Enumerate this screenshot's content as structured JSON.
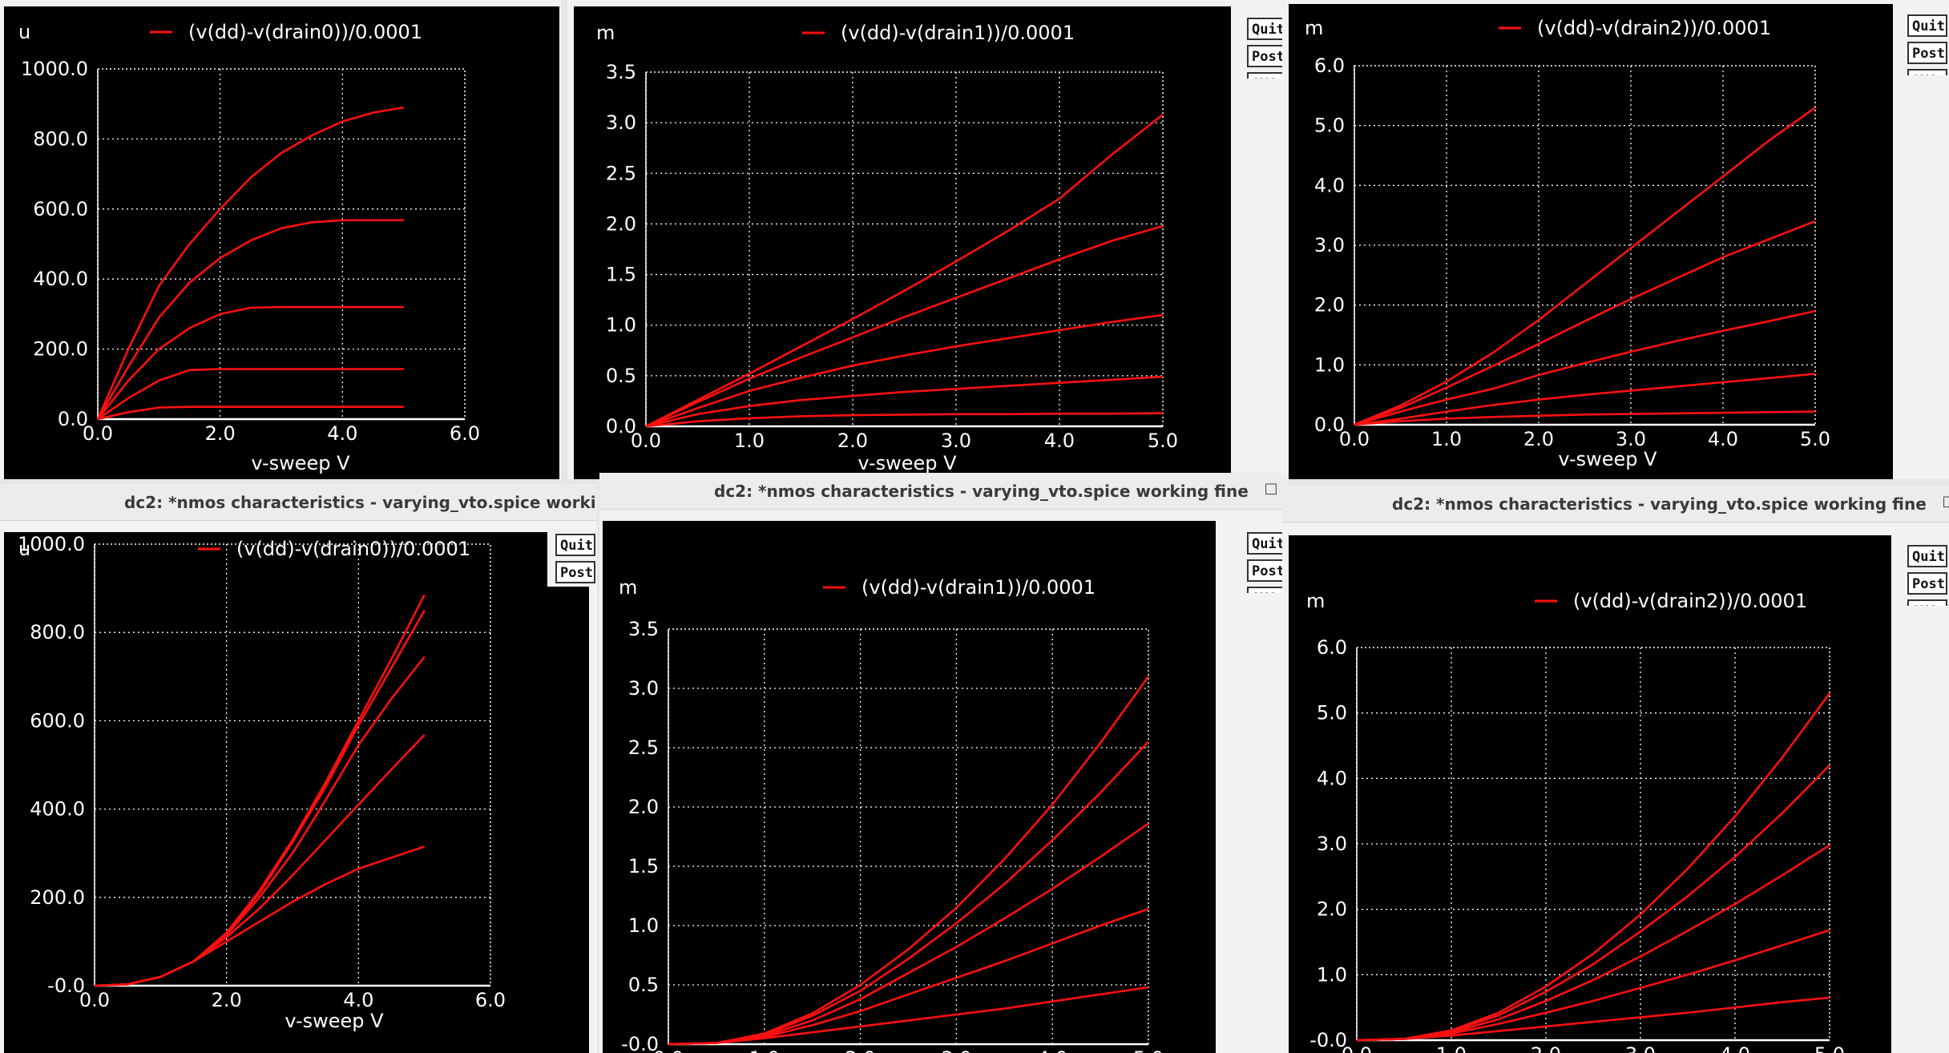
{
  "windows": [
    {
      "title": "",
      "buttons": [
        "Quit",
        "PostSc",
        "SVG"
      ],
      "chart_data": {
        "type": "line",
        "title": "",
        "legend": "(v(dd)-v(drain0))/0.0001",
        "ylabel": "u",
        "xlabel": "v-sweep  V",
        "xlim": [
          0,
          6
        ],
        "ylim": [
          0,
          1000
        ],
        "x_ticks": [
          "0.0",
          "2.0",
          "4.0",
          "6.0"
        ],
        "y_ticks": [
          "0.0",
          "200.0",
          "400.0",
          "600.0",
          "800.0",
          "1000.0"
        ],
        "grid": true,
        "x": [
          0,
          0.5,
          1,
          1.5,
          2,
          2.5,
          3,
          3.5,
          4,
          4.5,
          5
        ],
        "series": [
          {
            "values": [
              0,
              20,
              33,
              35,
              35,
              35,
              35,
              35,
              35,
              35,
              35
            ]
          },
          {
            "values": [
              0,
              60,
              110,
              140,
              143,
              143,
              143,
              143,
              143,
              143,
              143
            ]
          },
          {
            "values": [
              0,
              110,
              200,
              260,
              300,
              318,
              320,
              320,
              320,
              320,
              320
            ]
          },
          {
            "values": [
              0,
              150,
              290,
              390,
              460,
              510,
              545,
              562,
              568,
              568,
              568
            ]
          },
          {
            "values": [
              0,
              200,
              380,
              500,
              600,
              690,
              760,
              810,
              850,
              875,
              890
            ]
          }
        ]
      }
    },
    {
      "title": "",
      "buttons": [
        "Quit",
        "PostSc",
        "SVG"
      ],
      "chart_data": {
        "type": "line",
        "title": "",
        "legend": "(v(dd)-v(drain1))/0.0001",
        "ylabel": "m",
        "xlabel": "v-sweep  V",
        "xlim": [
          0,
          5
        ],
        "ylim": [
          0,
          3.5
        ],
        "x_ticks": [
          "0.0",
          "1.0",
          "2.0",
          "3.0",
          "4.0",
          "5.0"
        ],
        "y_ticks": [
          "0.0",
          "0.5",
          "1.0",
          "1.5",
          "2.0",
          "2.5",
          "3.0",
          "3.5"
        ],
        "grid": true,
        "x": [
          0,
          0.5,
          1,
          1.5,
          2,
          2.5,
          3,
          3.5,
          4,
          4.5,
          5
        ],
        "series": [
          {
            "values": [
              0,
              0.05,
              0.08,
              0.1,
              0.11,
              0.115,
              0.12,
              0.12,
              0.125,
              0.125,
              0.13
            ]
          },
          {
            "values": [
              0,
              0.12,
              0.2,
              0.26,
              0.3,
              0.34,
              0.37,
              0.4,
              0.43,
              0.46,
              0.49
            ]
          },
          {
            "values": [
              0,
              0.18,
              0.35,
              0.48,
              0.6,
              0.7,
              0.79,
              0.87,
              0.95,
              1.03,
              1.1
            ]
          },
          {
            "values": [
              0,
              0.24,
              0.47,
              0.68,
              0.88,
              1.08,
              1.27,
              1.46,
              1.65,
              1.83,
              1.98
            ]
          },
          {
            "values": [
              0,
              0.26,
              0.52,
              0.79,
              1.06,
              1.34,
              1.63,
              1.93,
              2.25,
              2.68,
              3.08
            ]
          }
        ]
      }
    },
    {
      "title": "",
      "buttons": [
        "Quit",
        "PostSc",
        "SVG"
      ],
      "chart_data": {
        "type": "line",
        "title": "",
        "legend": "(v(dd)-v(drain2))/0.0001",
        "ylabel": "m",
        "xlabel": "v-sweep  V",
        "xlim": [
          0,
          5
        ],
        "ylim": [
          0,
          6
        ],
        "x_ticks": [
          "0.0",
          "1.0",
          "2.0",
          "3.0",
          "4.0",
          "5.0"
        ],
        "y_ticks": [
          "0.0",
          "1.0",
          "2.0",
          "3.0",
          "4.0",
          "5.0",
          "6.0"
        ],
        "grid": true,
        "x": [
          0,
          0.5,
          1,
          1.5,
          2,
          2.5,
          3,
          3.5,
          4,
          4.5,
          5
        ],
        "series": [
          {
            "values": [
              0,
              0.06,
              0.1,
              0.13,
              0.15,
              0.17,
              0.18,
              0.19,
              0.2,
              0.21,
              0.22
            ]
          },
          {
            "values": [
              0,
              0.1,
              0.22,
              0.33,
              0.42,
              0.5,
              0.57,
              0.64,
              0.71,
              0.78,
              0.85
            ]
          },
          {
            "values": [
              0,
              0.22,
              0.42,
              0.6,
              0.83,
              1.03,
              1.22,
              1.4,
              1.57,
              1.73,
              1.9
            ]
          },
          {
            "values": [
              0,
              0.28,
              0.62,
              0.98,
              1.35,
              1.73,
              2.1,
              2.45,
              2.8,
              3.1,
              3.4
            ]
          },
          {
            "values": [
              0,
              0.32,
              0.72,
              1.2,
              1.75,
              2.35,
              2.95,
              3.55,
              4.15,
              4.75,
              5.3
            ]
          }
        ]
      }
    },
    {
      "title": "dc2: *nmos characteristics - varying_vto.spice  working fine",
      "buttons": [
        "Quit",
        "PostSc",
        "SVG"
      ],
      "chart_data": {
        "type": "line",
        "title": "",
        "legend": "(v(dd)-v(drain0))/0.0001",
        "ylabel": "u",
        "xlabel": "v-sweep  V",
        "xlim": [
          0,
          6
        ],
        "ylim": [
          0,
          1000
        ],
        "x_ticks": [
          "0.0",
          "2.0",
          "4.0",
          "6.0"
        ],
        "y_ticks": [
          "-0.0",
          "200.0",
          "400.0",
          "600.0",
          "800.0",
          "1000.0"
        ],
        "grid": true,
        "x": [
          0,
          0.5,
          1,
          1.5,
          2,
          2.5,
          3,
          3.5,
          4,
          4.5,
          5
        ],
        "series": [
          {
            "values": [
              0,
              3,
              20,
              55,
              100,
              145,
              190,
              230,
              265,
              290,
              315
            ]
          },
          {
            "values": [
              0,
              3,
              20,
              55,
              110,
              175,
              250,
              330,
              410,
              490,
              568
            ]
          },
          {
            "values": [
              0,
              3,
              20,
              55,
              115,
              200,
              300,
              420,
              545,
              650,
              745
            ]
          },
          {
            "values": [
              0,
              3,
              20,
              55,
              118,
              210,
              325,
              450,
              590,
              720,
              850
            ]
          },
          {
            "values": [
              0,
              3,
              20,
              55,
              120,
              215,
              330,
              460,
              600,
              740,
              885
            ]
          }
        ]
      }
    },
    {
      "title": "dc2: *nmos characteristics - varying_vto.spice  working fine",
      "buttons": [
        "Quit",
        "PostSc",
        "SVG"
      ],
      "chart_data": {
        "type": "line",
        "title": "",
        "legend": "(v(dd)-v(drain1))/0.0001",
        "ylabel": "m",
        "xlabel": "v-sweep  V",
        "xlim": [
          0,
          5
        ],
        "ylim": [
          0,
          3.5
        ],
        "x_ticks": [
          "0.0",
          "1.0",
          "2.0",
          "3.0",
          "4.0",
          "5.0"
        ],
        "y_ticks": [
          "-0.0",
          "0.5",
          "1.0",
          "1.5",
          "2.0",
          "2.5",
          "3.0",
          "3.5"
        ],
        "grid": true,
        "x": [
          0,
          0.5,
          1,
          1.5,
          2,
          2.5,
          3,
          3.5,
          4,
          4.5,
          5
        ],
        "series": [
          {
            "values": [
              0,
              0.01,
              0.05,
              0.1,
              0.15,
              0.2,
              0.25,
              0.3,
              0.36,
              0.42,
              0.48
            ]
          },
          {
            "values": [
              0,
              0.01,
              0.06,
              0.16,
              0.28,
              0.42,
              0.56,
              0.7,
              0.85,
              1.0,
              1.14
            ]
          },
          {
            "values": [
              0,
              0.01,
              0.07,
              0.2,
              0.38,
              0.6,
              0.82,
              1.06,
              1.31,
              1.58,
              1.86
            ]
          },
          {
            "values": [
              0,
              0.01,
              0.08,
              0.24,
              0.45,
              0.72,
              1.02,
              1.35,
              1.72,
              2.12,
              2.55
            ]
          },
          {
            "values": [
              0,
              0.01,
              0.09,
              0.26,
              0.5,
              0.8,
              1.15,
              1.56,
              2.02,
              2.54,
              3.1
            ]
          }
        ]
      }
    },
    {
      "title": "dc2: *nmos characteristics - varying_vto.spice  working fine",
      "buttons": [
        "Quit",
        "PostSc",
        "SVG"
      ],
      "chart_data": {
        "type": "line",
        "title": "",
        "legend": "(v(dd)-v(drain2))/0.0001",
        "ylabel": "m",
        "xlabel": "v-sweep  V",
        "xlim": [
          0,
          5
        ],
        "ylim": [
          0,
          6
        ],
        "x_ticks": [
          "0.0",
          "1.0",
          "2.0",
          "3.0",
          "4.0",
          "5.0"
        ],
        "y_ticks": [
          "-0.0",
          "1.0",
          "2.0",
          "3.0",
          "4.0",
          "5.0",
          "6.0"
        ],
        "grid": true,
        "x": [
          0,
          0.5,
          1,
          1.5,
          2,
          2.5,
          3,
          3.5,
          4,
          4.5,
          5
        ],
        "series": [
          {
            "values": [
              0,
              0.02,
              0.07,
              0.14,
              0.21,
              0.28,
              0.35,
              0.42,
              0.5,
              0.58,
              0.65
            ]
          },
          {
            "values": [
              0,
              0.02,
              0.1,
              0.25,
              0.42,
              0.6,
              0.8,
              1.0,
              1.22,
              1.45,
              1.68
            ]
          },
          {
            "values": [
              0,
              0.02,
              0.12,
              0.32,
              0.6,
              0.92,
              1.28,
              1.67,
              2.08,
              2.52,
              2.98
            ]
          },
          {
            "values": [
              0,
              0.02,
              0.14,
              0.38,
              0.74,
              1.16,
              1.66,
              2.2,
              2.8,
              3.47,
              4.2
            ]
          },
          {
            "values": [
              0,
              0.02,
              0.15,
              0.42,
              0.82,
              1.32,
              1.92,
              2.62,
              3.42,
              4.32,
              5.3
            ]
          }
        ]
      }
    }
  ]
}
